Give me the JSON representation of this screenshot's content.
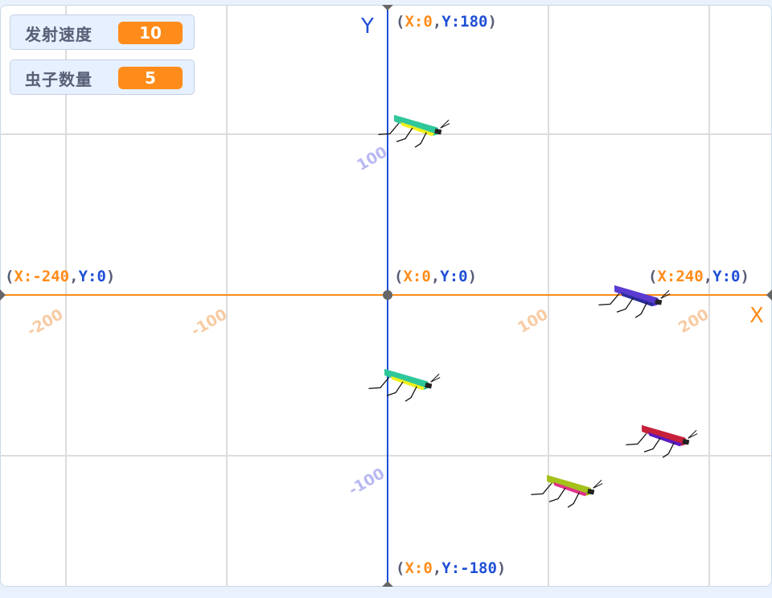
{
  "monitors": [
    {
      "label": "发射速度",
      "value": "10"
    },
    {
      "label": "虫子数量",
      "value": "5"
    }
  ],
  "axes": {
    "x_letter": "X",
    "y_letter": "Y",
    "x_color": "#ff8c1a",
    "y_color": "#1e4fd6",
    "grid_color": "#dcdcdc",
    "x_ticks": [
      "-200",
      "-100",
      "100",
      "200"
    ],
    "y_ticks": [
      "100",
      "-100"
    ]
  },
  "coords": {
    "top": {
      "x": "0",
      "y": "180"
    },
    "origin": {
      "x": "0",
      "y": "0"
    },
    "left": {
      "x": "-240",
      "y": "0"
    },
    "right": {
      "x": "240",
      "y": "0"
    },
    "bottom": {
      "x": "0",
      "y": "-180"
    }
  },
  "sprites": [
    {
      "name": "bug",
      "x": 18,
      "y": 106,
      "body": "#2ec79a",
      "belly": "#f1f01a"
    },
    {
      "name": "bug",
      "x": 12,
      "y": -52,
      "body": "#2ec79a",
      "belly": "#f1f01a"
    },
    {
      "name": "bug",
      "x": 155,
      "y": 0,
      "body": "#5a3ad0",
      "belly": "#2c2c9a"
    },
    {
      "name": "bug",
      "x": 172,
      "y": -87,
      "body": "#c8203a",
      "belly": "#5a1ac0"
    },
    {
      "name": "bug",
      "x": 113,
      "y": -118,
      "body": "#a4c21a",
      "belly": "#e0308a"
    }
  ]
}
